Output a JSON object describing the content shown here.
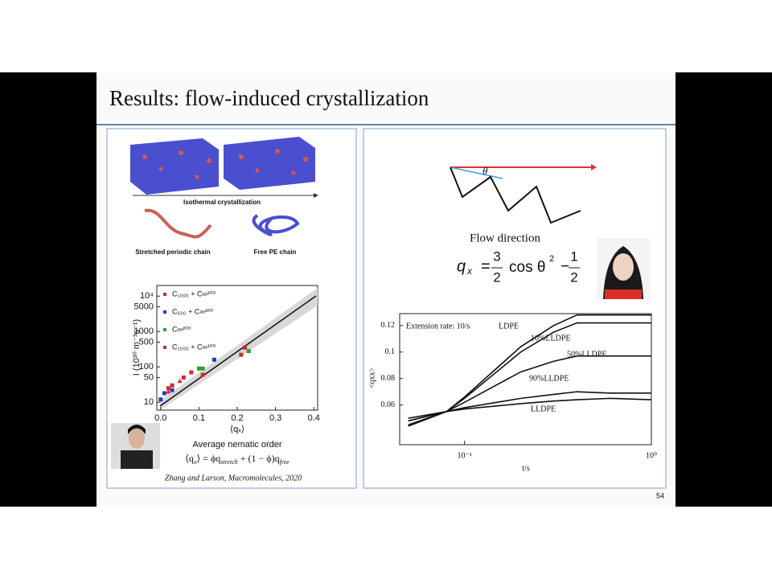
{
  "slide": {
    "title": "Results: flow-induced crystallization",
    "page_number": "54",
    "left": {
      "labels": [
        "Isothermal crystallization",
        "Stretched periodic chain",
        "Free PE chain"
      ],
      "plot": {
        "type": "scatter",
        "ylabel": "I (10³⁰ m⁻³s⁻¹)",
        "xlabel": "⟨qₓ⟩",
        "log_y": true,
        "xlim": [
          -0.01,
          0.41
        ],
        "ylim": [
          6,
          20000
        ],
        "xticks": [
          {
            "value": 0,
            "label": "0.0"
          },
          0.1,
          0.2,
          0.3,
          0.4
        ],
        "yticks": [
          10,
          50,
          100,
          500,
          1000,
          5000,
          {
            "value": 10000,
            "label": "10⁴"
          }
        ],
        "series": [
          {
            "name": "C₁₀₀₀ + C∞²⁰⁰",
            "color": "#d62728",
            "x": [
              0.02,
              0.03,
              0.06,
              0.08,
              0.11,
              0.21,
              0.22
            ],
            "values": [
              25,
              30,
              50,
              70,
              60,
              220,
              350
            ]
          },
          {
            "name": "C₅₀₀ + C∞²⁰⁰",
            "color": "#1f3fbf",
            "x": [
              0.0,
              0.01,
              0.03,
              0.14
            ],
            "values": [
              12,
              18,
              22,
              160
            ]
          },
          {
            "name": "C∞²⁰⁰",
            "color": "#2ca02c",
            "x": [
              0.1,
              0.11,
              0.23
            ],
            "values": [
              90,
              90,
              280
            ]
          },
          {
            "name": "C₁₀₀₀ + C∞¹⁰⁰",
            "color": "#d62728",
            "x": [
              0.02,
              0.05
            ],
            "values": [
              20,
              40
            ]
          }
        ]
      },
      "caption": "Average nematic order",
      "formula": [
        "⟨q",
        "x",
        "⟩ = ϕq",
        "stretch",
        " + (1 − ϕ)q",
        "free"
      ],
      "citation": "Zhang and Larson, Macromolecules, 2020"
    },
    "right": {
      "angle_label": "θ",
      "flow_label": "Flow direction",
      "formula": [
        "q",
        "x",
        "=",
        "3",
        "2",
        "cos θ",
        "2",
        "−",
        "1",
        "2"
      ],
      "plot": {
        "type": "line",
        "annotation": "Extension rate: 10/s",
        "xlabel": "t/s",
        "ylabel": "<qxx>",
        "log_x": true,
        "xlim": [
          0.045,
          1
        ],
        "ylim": [
          0.03,
          0.129
        ],
        "xticks": [
          {
            "value": 0.1,
            "label": "10⁻¹"
          },
          {
            "value": 1,
            "label": "10⁰"
          }
        ],
        "yticks": [
          0.06,
          0.08,
          0.1,
          0.12
        ],
        "x": [
          0.05,
          0.08,
          0.1,
          0.2,
          0.3,
          0.4,
          0.6,
          1.0
        ],
        "series": [
          {
            "name": "LDPE",
            "color": "#111111",
            "values": [
              0.048,
              0.055,
              0.066,
              0.104,
              0.12,
              0.128,
              0.128,
              0.128
            ]
          },
          {
            "name": "10%LLDPE",
            "color": "#111111",
            "values": [
              0.045,
              0.055,
              0.065,
              0.1,
              0.115,
              0.122,
              0.122,
              0.122
            ]
          },
          {
            "name": "50%LLDPE",
            "color": "#111111",
            "values": [
              0.044,
              0.055,
              0.062,
              0.085,
              0.093,
              0.097,
              0.097,
              0.097
            ]
          },
          {
            "name": "90%LLDPE",
            "color": "#111111",
            "values": [
              0.048,
              0.055,
              0.058,
              0.065,
              0.068,
              0.07,
              0.069,
              0.069
            ]
          },
          {
            "name": "LLDPE",
            "color": "#111111",
            "values": [
              0.05,
              0.055,
              0.057,
              0.061,
              0.063,
              0.064,
              0.065,
              0.064
            ]
          }
        ]
      }
    }
  }
}
